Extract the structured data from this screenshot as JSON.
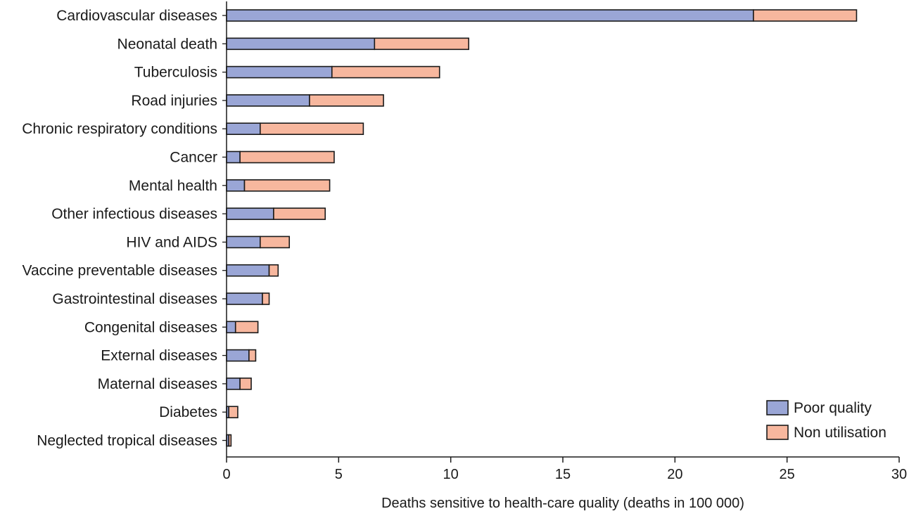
{
  "chart_data": {
    "type": "bar",
    "orientation": "horizontal",
    "stacked": true,
    "categories": [
      "Cardiovascular diseases",
      "Neonatal death",
      "Tuberculosis",
      "Road injuries",
      "Chronic respiratory conditions",
      "Cancer",
      "Mental health",
      "Other infectious diseases",
      "HIV and AIDS",
      "Vaccine preventable diseases",
      "Gastrointestinal diseases",
      "Congenital diseases",
      "External diseases",
      "Maternal diseases",
      "Diabetes",
      "Neglected tropical diseases"
    ],
    "series": [
      {
        "name": "Poor quality",
        "color": "#9aa6d6",
        "values": [
          23.5,
          6.6,
          4.7,
          3.7,
          1.5,
          0.6,
          0.8,
          2.1,
          1.5,
          1.9,
          1.6,
          0.4,
          1.0,
          0.6,
          0.1,
          0.1
        ]
      },
      {
        "name": "Non utilisation",
        "color": "#f7b79e",
        "values": [
          4.6,
          4.2,
          4.8,
          3.3,
          4.6,
          4.2,
          3.8,
          2.3,
          1.3,
          0.4,
          0.3,
          1.0,
          0.3,
          0.5,
          0.4,
          0.1
        ]
      }
    ],
    "xlabel": "Deaths sensitive to health-care quality (deaths in 100 000)",
    "ylabel": "",
    "xlim": [
      0,
      30
    ],
    "xticks": [
      0,
      5,
      10,
      15,
      20,
      25,
      30
    ],
    "grid": false,
    "legend_position": "bottom-right"
  }
}
